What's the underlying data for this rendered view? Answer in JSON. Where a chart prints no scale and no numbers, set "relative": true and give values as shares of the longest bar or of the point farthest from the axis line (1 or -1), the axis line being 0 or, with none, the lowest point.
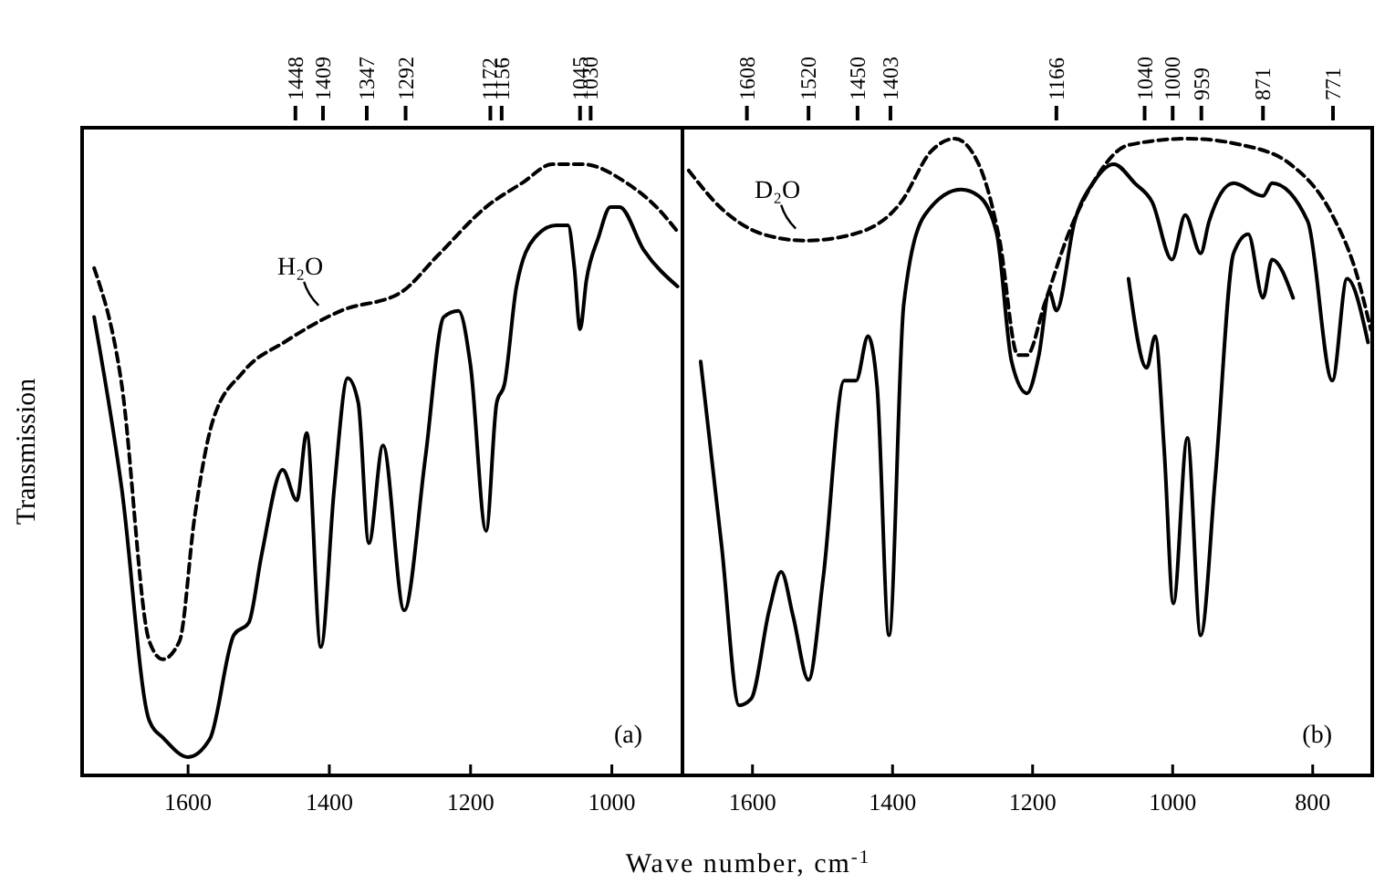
{
  "chart_data": [
    {
      "type": "line",
      "ylabel": "Transmission",
      "xlabel": "Wave number, cm$^{-1}$",
      "relative": true,
      "xlim": [
        1750,
        900
      ],
      "xticks": [
        1600,
        1400,
        1200,
        1000
      ],
      "x2lim": [
        1750,
        900
      ],
      "x2ticks": [
        1448,
        1409,
        1347,
        1292,
        1172,
        1156,
        1045,
        1030
      ],
      "series": [
        {
          "color": "#000000",
          "line_style": "solid",
          "x": [
            1733,
            1694,
            1655,
            1634,
            1600,
            1569,
            1535,
            1514,
            1496,
            1466,
            1446,
            1432,
            1412,
            1393,
            1374,
            1359,
            1344,
            1324,
            1294,
            1264,
            1238,
            1217,
            1200,
            1178,
            1163,
            1152,
            1135,
            1109,
            1079,
            1062,
            1053,
            1045,
            1036,
            1019,
            1002,
            989,
            955,
            907
          ],
          "values": [
            0.75,
            0.47,
            0.09,
            0.06,
            0.03,
            0.06,
            0.23,
            0.25,
            0.36,
            0.5,
            0.45,
            0.56,
            0.21,
            0.47,
            0.65,
            0.61,
            0.38,
            0.54,
            0.27,
            0.52,
            0.75,
            0.76,
            0.67,
            0.4,
            0.61,
            0.64,
            0.8,
            0.88,
            0.9,
            0.9,
            0.83,
            0.73,
            0.81,
            0.88,
            0.93,
            0.93,
            0.86,
            0.8
          ]
        },
        {
          "color": "#000000",
          "line_style": "dashed",
          "x": [
            1733,
            1694,
            1655,
            1636,
            1612,
            1591,
            1565,
            1522,
            1462,
            1384,
            1299,
            1247,
            1178,
            1126,
            1084,
            1041,
            980,
            937,
            907
          ],
          "values": [
            0.83,
            0.64,
            0.22,
            0.19,
            0.22,
            0.42,
            0.58,
            0.66,
            0.71,
            0.76,
            0.79,
            0.85,
            0.93,
            0.97,
            1.0,
            1.0,
            0.97,
            0.93,
            0.89
          ]
        }
      ],
      "annotations": [
        {
          "text": "H₂O",
          "x": 1410,
          "y": 0.76
        },
        "(a)"
      ]
    },
    {
      "type": "line",
      "relative": true,
      "xlim": [
        1700,
        715
      ],
      "xticks": [
        1600,
        1400,
        1200,
        1000,
        800
      ],
      "x2lim": [
        1700,
        715
      ],
      "x2ticks": [
        1608,
        1520,
        1450,
        1403,
        1166,
        1040,
        1000,
        959,
        871,
        771
      ],
      "series": [
        {
          "color": "#000000",
          "line_style": "solid",
          "x": [
            1674,
            1644,
            1619,
            1602,
            1576,
            1559,
            1542,
            1520,
            1499,
            1469,
            1452,
            1435,
            1422,
            1405,
            1384,
            1354,
            1302,
            1277,
            1251,
            1230,
            1208,
            1191,
            1176,
            1166,
            1140,
            1114,
            1084,
            1054,
            1029,
            1001,
            982,
            960,
            948,
            913,
            871,
            858,
            807,
            772,
            751,
            721
          ],
          "values": [
            0.65,
            0.36,
            0.11,
            0.12,
            0.26,
            0.32,
            0.25,
            0.15,
            0.31,
            0.62,
            0.62,
            0.69,
            0.61,
            0.22,
            0.74,
            0.88,
            0.92,
            0.91,
            0.85,
            0.65,
            0.6,
            0.66,
            0.76,
            0.73,
            0.87,
            0.93,
            0.96,
            0.93,
            0.9,
            0.81,
            0.88,
            0.82,
            0.87,
            0.93,
            0.91,
            0.93,
            0.87,
            0.62,
            0.78,
            0.68
          ]
        },
        {
          "color": "#000000",
          "line_style": "dashed",
          "x": [
            1691,
            1644,
            1585,
            1525,
            1456,
            1388,
            1345,
            1311,
            1277,
            1247,
            1221,
            1208,
            1183,
            1149,
            1114,
            1063,
            978,
            901,
            832,
            772,
            738,
            717
          ],
          "values": [
            0.95,
            0.89,
            0.85,
            0.84,
            0.85,
            0.9,
            0.98,
            1.0,
            0.96,
            0.84,
            0.66,
            0.66,
            0.74,
            0.85,
            0.93,
            0.99,
            1.0,
            0.99,
            0.96,
            0.88,
            0.79,
            0.7
          ]
        },
        {
          "color": "#000000",
          "line_style": "solid",
          "x": [
            1063,
            1037,
            1025,
            1012,
            999,
            979,
            960,
            939,
            913,
            892,
            871,
            858,
            828
          ],
          "values": [
            0.78,
            0.64,
            0.69,
            0.51,
            0.27,
            0.53,
            0.22,
            0.47,
            0.82,
            0.85,
            0.75,
            0.81,
            0.75
          ]
        }
      ],
      "annotations": [
        {
          "text": "D₂O",
          "x": 1533,
          "y": 0.85
        },
        "(b)"
      ]
    }
  ]
}
